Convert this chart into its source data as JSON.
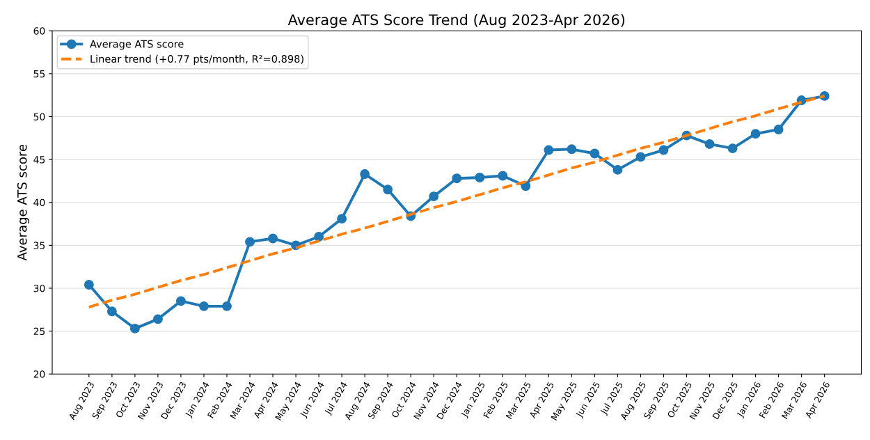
{
  "chart_data": {
    "type": "line",
    "title": "Average ATS Score Trend (Aug 2023-Apr 2026)",
    "ylabel": "Average ATS score",
    "categories": [
      "Aug 2023",
      "Sep 2023",
      "Oct 2023",
      "Nov 2023",
      "Dec 2023",
      "Jan 2024",
      "Feb 2024",
      "Mar 2024",
      "Apr 2024",
      "May 2024",
      "Jun 2024",
      "Jul 2024",
      "Aug 2024",
      "Sep 2024",
      "Oct 2024",
      "Nov 2024",
      "Dec 2024",
      "Jan 2025",
      "Feb 2025",
      "Mar 2025",
      "Apr 2025",
      "May 2025",
      "Jun 2025",
      "Jul 2025",
      "Aug 2025",
      "Sep 2025",
      "Oct 2025",
      "Nov 2025",
      "Dec 2025",
      "Jan 2026",
      "Feb 2026",
      "Mar 2026",
      "Apr 2026"
    ],
    "series": [
      {
        "name": "Average ATS score",
        "color": "#1f77b4",
        "marker": "circle",
        "line_style": "solid",
        "values": [
          30.4,
          27.3,
          25.3,
          26.4,
          28.5,
          27.9,
          27.9,
          35.4,
          35.8,
          35.0,
          36.0,
          38.1,
          43.3,
          41.5,
          38.4,
          40.7,
          42.8,
          42.9,
          43.1,
          41.9,
          46.1,
          46.2,
          45.7,
          43.8,
          45.3,
          46.1,
          47.8,
          46.8,
          46.3,
          48.0,
          48.5,
          51.9,
          52.4
        ]
      },
      {
        "name": "Linear trend (+0.77 pts/month, R²=0.898)",
        "color": "#ff7f0e",
        "marker": "none",
        "line_style": "dashed",
        "values": [
          27.8,
          28.6,
          29.3,
          30.1,
          30.9,
          31.6,
          32.4,
          33.2,
          34.0,
          34.7,
          35.5,
          36.3,
          37.0,
          37.8,
          38.6,
          39.4,
          40.1,
          40.9,
          41.7,
          42.4,
          43.2,
          44.0,
          44.7,
          45.5,
          46.3,
          47.0,
          47.8,
          48.6,
          49.4,
          50.1,
          50.9,
          51.7,
          52.4
        ]
      }
    ],
    "ylim": [
      20,
      60
    ],
    "yticks": [
      20,
      25,
      30,
      35,
      40,
      45,
      50,
      55,
      60
    ],
    "grid": "y",
    "legend": "top left"
  }
}
